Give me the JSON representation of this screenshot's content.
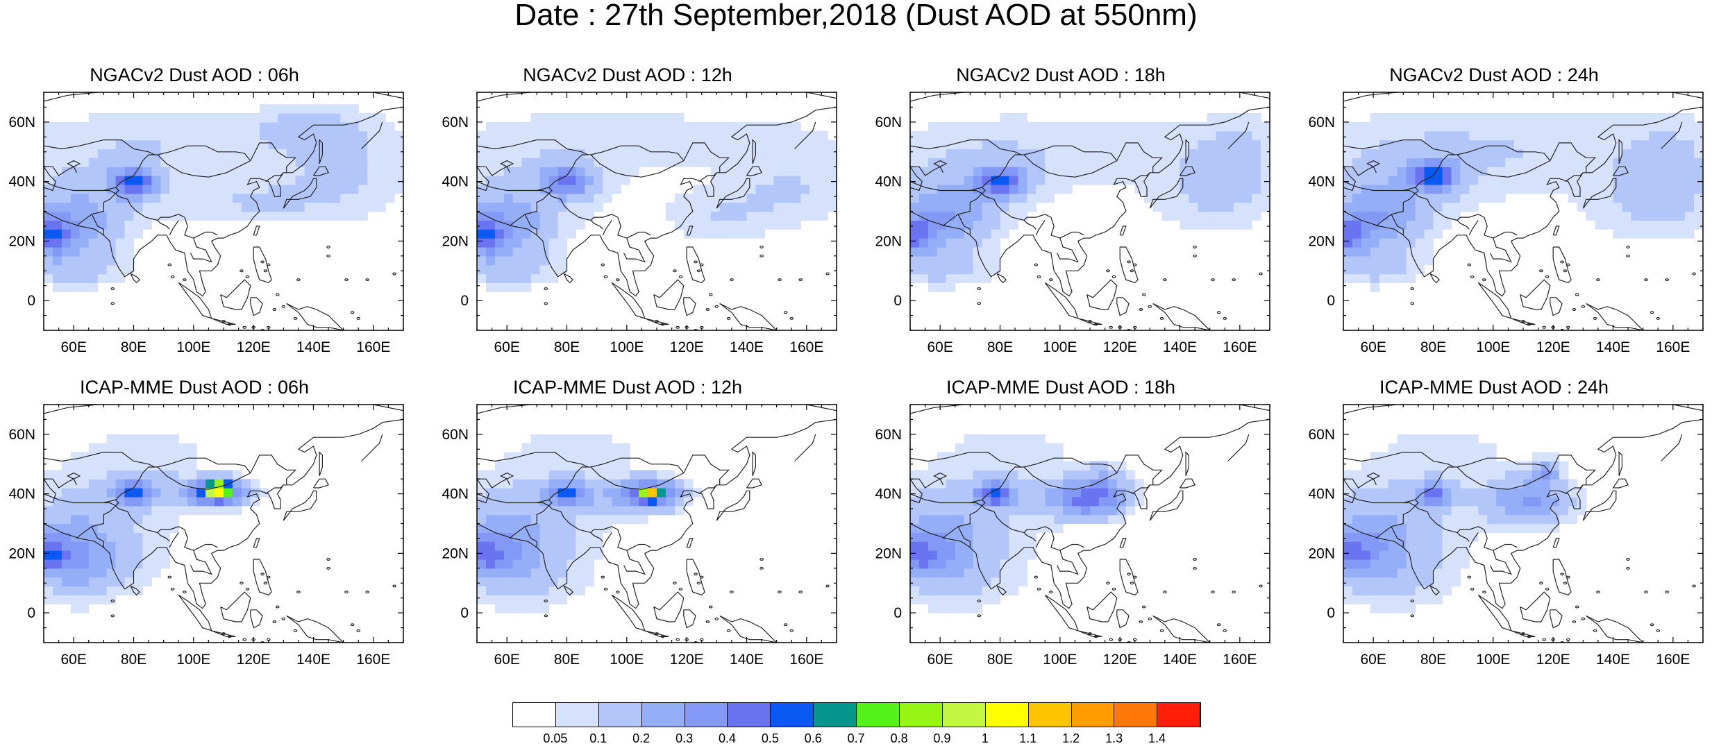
{
  "title": "Date : 27th September,2018 (Dust AOD at 550nm)",
  "axes": {
    "lon_ticks": [
      "60E",
      "80E",
      "100E",
      "120E",
      "140E",
      "160E"
    ],
    "lon_values": [
      60,
      80,
      100,
      120,
      140,
      160
    ],
    "lat_ticks": [
      "60N",
      "40N",
      "20N",
      "0"
    ],
    "lat_values": [
      60,
      40,
      20,
      0
    ],
    "lon_range": [
      50,
      170
    ],
    "lat_range": [
      -10,
      70
    ]
  },
  "panels": [
    {
      "title": "NGACv2 Dust AOD : 06h",
      "blobs": [
        [
          70,
          40,
          36,
          20,
          0.08
        ],
        [
          80,
          40,
          8,
          5,
          0.45
        ],
        [
          60,
          25,
          14,
          12,
          0.25
        ],
        [
          52,
          22,
          6,
          6,
          0.35
        ],
        [
          60,
          10,
          18,
          6,
          0.1
        ],
        [
          110,
          55,
          60,
          10,
          0.07
        ],
        [
          150,
          42,
          25,
          16,
          0.1
        ],
        [
          120,
          33,
          25,
          8,
          0.08
        ],
        [
          140,
          60,
          18,
          6,
          0.07
        ]
      ]
    },
    {
      "title": "NGACv2 Dust AOD : 12h",
      "blobs": [
        [
          70,
          40,
          36,
          20,
          0.08
        ],
        [
          80,
          40,
          8,
          5,
          0.4
        ],
        [
          60,
          25,
          14,
          12,
          0.25
        ],
        [
          52,
          22,
          6,
          6,
          0.35
        ],
        [
          60,
          10,
          18,
          6,
          0.1
        ],
        [
          115,
          55,
          60,
          10,
          0.07
        ],
        [
          155,
          38,
          22,
          14,
          0.1
        ],
        [
          130,
          28,
          18,
          10,
          0.08
        ]
      ]
    },
    {
      "title": "NGACv2 Dust AOD : 18h",
      "blobs": [
        [
          70,
          40,
          36,
          20,
          0.08
        ],
        [
          80,
          40,
          8,
          5,
          0.45
        ],
        [
          62,
          28,
          14,
          12,
          0.25
        ],
        [
          52,
          22,
          6,
          6,
          0.35
        ],
        [
          60,
          10,
          18,
          6,
          0.1
        ],
        [
          115,
          52,
          60,
          12,
          0.07
        ],
        [
          145,
          35,
          20,
          14,
          0.08
        ],
        [
          160,
          45,
          14,
          18,
          0.09
        ]
      ]
    },
    {
      "title": "NGACv2 Dust AOD : 24h",
      "blobs": [
        [
          70,
          42,
          36,
          20,
          0.09
        ],
        [
          80,
          42,
          8,
          5,
          0.45
        ],
        [
          62,
          28,
          14,
          12,
          0.25
        ],
        [
          52,
          22,
          6,
          6,
          0.35
        ],
        [
          60,
          10,
          18,
          6,
          0.1
        ],
        [
          120,
          52,
          60,
          14,
          0.08
        ],
        [
          148,
          32,
          22,
          14,
          0.08
        ],
        [
          160,
          42,
          14,
          18,
          0.09
        ]
      ]
    },
    {
      "title": "ICAP-MME Dust AOD : 06h",
      "blobs": [
        [
          70,
          35,
          30,
          18,
          0.1
        ],
        [
          80,
          40,
          6,
          4,
          0.4
        ],
        [
          60,
          20,
          14,
          14,
          0.22
        ],
        [
          52,
          20,
          6,
          6,
          0.3
        ],
        [
          108,
          40,
          10,
          4,
          0.45
        ],
        [
          108,
          42,
          4,
          3,
          0.75
        ],
        [
          95,
          42,
          20,
          5,
          0.1
        ],
        [
          85,
          55,
          20,
          8,
          0.07
        ],
        [
          70,
          15,
          20,
          10,
          0.08
        ]
      ]
    },
    {
      "title": "ICAP-MME Dust AOD : 12h",
      "blobs": [
        [
          70,
          35,
          30,
          18,
          0.1
        ],
        [
          80,
          40,
          6,
          4,
          0.4
        ],
        [
          60,
          22,
          14,
          14,
          0.22
        ],
        [
          52,
          20,
          6,
          6,
          0.3
        ],
        [
          108,
          40,
          10,
          5,
          0.45
        ],
        [
          108,
          40,
          3,
          2,
          0.65
        ],
        [
          95,
          40,
          20,
          5,
          0.1
        ],
        [
          85,
          55,
          20,
          8,
          0.07
        ],
        [
          70,
          12,
          20,
          12,
          0.08
        ]
      ]
    },
    {
      "title": "ICAP-MME Dust AOD : 18h",
      "blobs": [
        [
          70,
          35,
          30,
          18,
          0.1
        ],
        [
          78,
          40,
          6,
          4,
          0.45
        ],
        [
          60,
          22,
          14,
          14,
          0.22
        ],
        [
          52,
          20,
          6,
          6,
          0.3
        ],
        [
          110,
          38,
          12,
          6,
          0.35
        ],
        [
          115,
          45,
          8,
          6,
          0.15
        ],
        [
          100,
          40,
          20,
          6,
          0.1
        ],
        [
          85,
          55,
          20,
          8,
          0.07
        ],
        [
          70,
          12,
          20,
          12,
          0.08
        ]
      ]
    },
    {
      "title": "ICAP-MME Dust AOD : 24h",
      "blobs": [
        [
          70,
          35,
          30,
          18,
          0.1
        ],
        [
          80,
          40,
          6,
          4,
          0.35
        ],
        [
          60,
          22,
          14,
          14,
          0.22
        ],
        [
          52,
          20,
          6,
          6,
          0.3
        ],
        [
          112,
          38,
          14,
          8,
          0.3
        ],
        [
          118,
          48,
          4,
          4,
          0.25
        ],
        [
          85,
          55,
          20,
          8,
          0.07
        ],
        [
          72,
          12,
          20,
          12,
          0.08
        ]
      ]
    }
  ],
  "colorbar": {
    "colors": [
      "#ffffff",
      "#d6e1fc",
      "#b3c6fa",
      "#94aef7",
      "#8399f5",
      "#6a73f0",
      "#0a59f2",
      "#05978e",
      "#54f21b",
      "#96f517",
      "#c2f743",
      "#ffff00",
      "#ffc400",
      "#ff9c00",
      "#ff780a",
      "#ff1e0a"
    ],
    "labels": [
      "0.05",
      "0.1",
      "0.2",
      "0.3",
      "0.4",
      "0.5",
      "0.6",
      "0.7",
      "0.8",
      "0.9",
      "1",
      "1.1",
      "1.2",
      "1.3",
      "1.4"
    ],
    "bounds": [
      0.05,
      0.1,
      0.2,
      0.3,
      0.4,
      0.5,
      0.6,
      0.7,
      0.8,
      0.9,
      1.0,
      1.1,
      1.2,
      1.3,
      1.4
    ]
  }
}
